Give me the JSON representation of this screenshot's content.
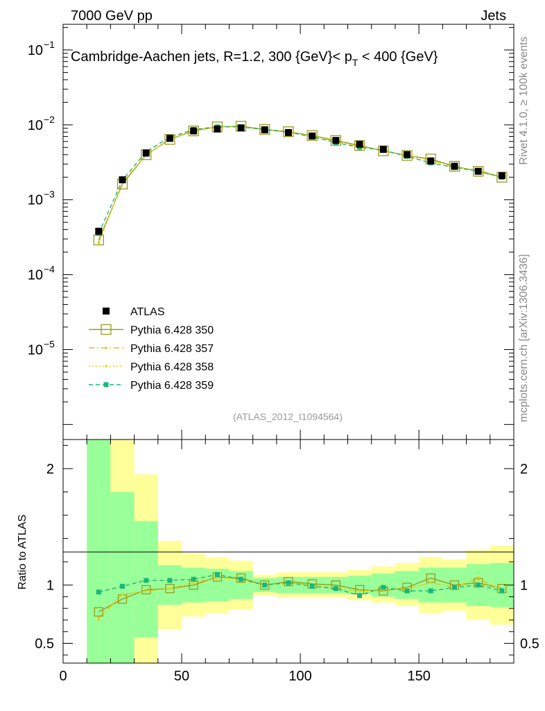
{
  "header": {
    "left": "7000 GeV pp",
    "right": "Jets"
  },
  "side": {
    "rivet": "Rivet 4.1.0, ≥ 100k events",
    "mcplots": "mcplots.cern.ch [arXiv:1306.3436]"
  },
  "chart_data": {
    "type": "line",
    "title_main": "Cambridge-Aachen jets, R=1.2, 300 {GeV}< p",
    "title_sub": "T",
    "title_tail": " < 400 {GeV}",
    "analysis_id": "(ATLAS_2012_I1094564)",
    "xlim": [
      0,
      190
    ],
    "ylim_top": [
      6.3e-07,
      0.22
    ],
    "yscale_top": "log",
    "ylim_ratio": [
      0.33,
      2.25
    ],
    "ylabel_ratio": "Ratio to ATLAS",
    "x_ticks": [
      {
        "value": 0,
        "label": "0"
      },
      {
        "value": 50,
        "label": "50"
      },
      {
        "value": 100,
        "label": "100"
      },
      {
        "value": 150,
        "label": "150"
      }
    ],
    "y_ticks_top": [
      {
        "exp": -1,
        "base": "10",
        "sup": "−1"
      },
      {
        "exp": -2,
        "base": "10",
        "sup": "−2"
      },
      {
        "exp": -3,
        "base": "10",
        "sup": "−3"
      },
      {
        "exp": -4,
        "base": "10",
        "sup": "−4"
      },
      {
        "exp": -5,
        "base": "10",
        "sup": "−5"
      }
    ],
    "y_ticks_ratio": [
      {
        "value": 2,
        "label": "2"
      },
      {
        "value": 1,
        "label": "1"
      },
      {
        "value": 0.5,
        "label": "0.5"
      }
    ],
    "x": [
      15,
      25,
      35,
      45,
      55,
      65,
      75,
      85,
      95,
      105,
      115,
      125,
      135,
      145,
      155,
      165,
      175,
      185
    ],
    "series": [
      {
        "name": "ATLAS",
        "color": "#000000",
        "style": "data",
        "values": [
          0.00038,
          0.00185,
          0.0042,
          0.0066,
          0.0083,
          0.0088,
          0.0091,
          0.0086,
          0.0079,
          0.0071,
          0.0062,
          0.0055,
          0.0047,
          0.004,
          0.0033,
          0.0028,
          0.0024,
          0.0021
        ]
      },
      {
        "name": "Pythia 6.428 350",
        "color": "#9a9a1c",
        "style": "solid-open-square",
        "values": [
          0.00029,
          0.00162,
          0.004,
          0.0064,
          0.0083,
          0.0094,
          0.0096,
          0.0087,
          0.0081,
          0.0072,
          0.0062,
          0.0053,
          0.0045,
          0.0039,
          0.0035,
          0.0028,
          0.0024,
          0.002
        ]
      },
      {
        "name": "Pythia 6.428 357",
        "color": "#ddc021",
        "style": "dashdot",
        "values": [
          0.00027,
          0.0017,
          0.004,
          0.0064,
          0.0085,
          0.0094,
          0.0095,
          0.0086,
          0.008,
          0.0071,
          0.006,
          0.0052,
          0.0045,
          0.0039,
          0.0034,
          0.0027,
          0.0025,
          0.002
        ]
      },
      {
        "name": "Pythia 6.428 358",
        "color": "#e6d214",
        "style": "dotted",
        "values": [
          0.00026,
          0.0017,
          0.004,
          0.0064,
          0.0085,
          0.0093,
          0.0095,
          0.0086,
          0.0081,
          0.0071,
          0.006,
          0.0052,
          0.0045,
          0.0038,
          0.0034,
          0.0027,
          0.0025,
          0.002
        ]
      },
      {
        "name": "Pythia 6.428 359",
        "color": "#18b878",
        "style": "dashed-filled-square",
        "values": [
          0.000355,
          0.00182,
          0.0044,
          0.0068,
          0.0087,
          0.0094,
          0.0094,
          0.0086,
          0.008,
          0.0069,
          0.0058,
          0.005,
          0.0046,
          0.0038,
          0.0031,
          0.0027,
          0.0024,
          0.002
        ]
      }
    ],
    "ratio_series": [
      {
        "name": "Pythia 6.428 350",
        "values": [
          0.77,
          0.88,
          0.96,
          0.97,
          1.0,
          1.07,
          1.06,
          1.0,
          1.03,
          1.01,
          1.0,
          0.96,
          0.95,
          0.98,
          1.06,
          1.0,
          1.02,
          0.97
        ]
      },
      {
        "name": "Pythia 6.428 357",
        "values": [
          0.72,
          0.92,
          0.95,
          0.97,
          1.02,
          1.07,
          1.05,
          1.0,
          1.02,
          1.0,
          0.97,
          0.95,
          0.96,
          0.97,
          1.02,
          0.98,
          1.05,
          0.96
        ]
      },
      {
        "name": "Pythia 6.428 358",
        "values": [
          0.7,
          0.92,
          0.95,
          0.97,
          1.02,
          1.06,
          1.05,
          1.0,
          1.02,
          1.0,
          0.97,
          0.95,
          0.96,
          0.97,
          1.02,
          0.98,
          1.07,
          0.96
        ]
      },
      {
        "name": "Pythia 6.428 359",
        "values": [
          0.94,
          0.99,
          1.04,
          1.04,
          1.05,
          1.09,
          1.05,
          1.0,
          1.02,
          0.99,
          0.97,
          0.91,
          0.98,
          0.95,
          0.95,
          0.98,
          1.0,
          0.95
        ]
      }
    ],
    "bands": [
      {
        "x0": 10,
        "x1": 20,
        "g_lo": 0.2,
        "g_hi": 3.0,
        "y_lo": 0.2,
        "y_hi": 3.0
      },
      {
        "x0": 20,
        "x1": 30,
        "g_lo": 0.2,
        "g_hi": 1.8,
        "y_lo": 0.2,
        "y_hi": 3.0
      },
      {
        "x0": 30,
        "x1": 40,
        "g_lo": 0.55,
        "g_hi": 1.55,
        "y_lo": 0.2,
        "y_hi": 1.95
      },
      {
        "x0": 40,
        "x1": 50,
        "g_lo": 0.83,
        "g_hi": 1.17,
        "y_lo": 0.62,
        "y_hi": 1.38
      },
      {
        "x0": 50,
        "x1": 60,
        "g_lo": 0.85,
        "g_hi": 1.15,
        "y_lo": 0.73,
        "y_hi": 1.27
      },
      {
        "x0": 60,
        "x1": 70,
        "g_lo": 0.86,
        "g_hi": 1.14,
        "y_lo": 0.76,
        "y_hi": 1.24
      },
      {
        "x0": 70,
        "x1": 80,
        "g_lo": 0.88,
        "g_hi": 1.12,
        "y_lo": 0.79,
        "y_hi": 1.21
      },
      {
        "x0": 80,
        "x1": 90,
        "g_lo": 0.94,
        "g_hi": 1.06,
        "y_lo": 0.91,
        "y_hi": 1.09
      },
      {
        "x0": 90,
        "x1": 100,
        "g_lo": 0.93,
        "g_hi": 1.07,
        "y_lo": 0.89,
        "y_hi": 1.11
      },
      {
        "x0": 100,
        "x1": 110,
        "g_lo": 0.93,
        "g_hi": 1.07,
        "y_lo": 0.89,
        "y_hi": 1.11
      },
      {
        "x0": 110,
        "x1": 120,
        "g_lo": 0.93,
        "g_hi": 1.07,
        "y_lo": 0.89,
        "y_hi": 1.11
      },
      {
        "x0": 120,
        "x1": 130,
        "g_lo": 0.92,
        "g_hi": 1.08,
        "y_lo": 0.87,
        "y_hi": 1.13
      },
      {
        "x0": 130,
        "x1": 140,
        "g_lo": 0.9,
        "g_hi": 1.1,
        "y_lo": 0.85,
        "y_hi": 1.16
      },
      {
        "x0": 140,
        "x1": 150,
        "g_lo": 0.88,
        "g_hi": 1.12,
        "y_lo": 0.82,
        "y_hi": 1.19
      },
      {
        "x0": 150,
        "x1": 160,
        "g_lo": 0.85,
        "g_hi": 1.15,
        "y_lo": 0.76,
        "y_hi": 1.24
      },
      {
        "x0": 160,
        "x1": 170,
        "g_lo": 0.85,
        "g_hi": 1.15,
        "y_lo": 0.78,
        "y_hi": 1.22
      },
      {
        "x0": 170,
        "x1": 180,
        "g_lo": 0.82,
        "g_hi": 1.18,
        "y_lo": 0.7,
        "y_hi": 1.3
      },
      {
        "x0": 180,
        "x1": 190,
        "g_lo": 0.81,
        "g_hi": 1.19,
        "y_lo": 0.66,
        "y_hi": 1.34
      }
    ]
  }
}
